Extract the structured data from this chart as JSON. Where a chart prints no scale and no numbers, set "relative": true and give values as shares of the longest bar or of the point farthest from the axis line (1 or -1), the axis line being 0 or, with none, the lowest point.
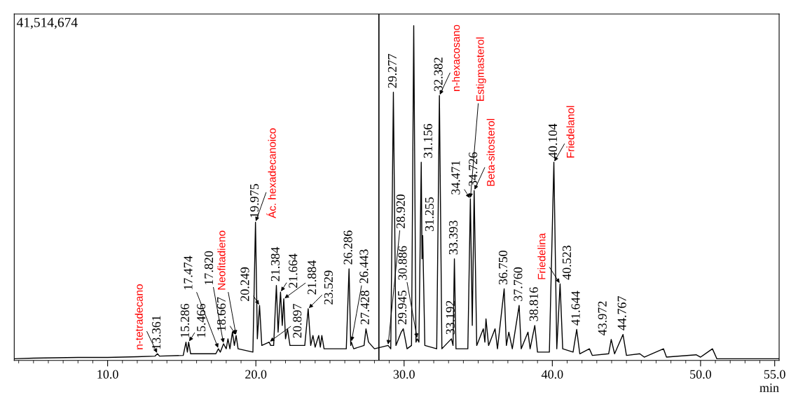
{
  "chart_data": {
    "type": "line",
    "relative": true,
    "xlabel": "min",
    "xlim": [
      3.7,
      55.3
    ],
    "xticks": [
      {
        "value": 10,
        "label": "10.0"
      },
      {
        "value": 20,
        "label": "20.0"
      },
      {
        "value": 30,
        "label": "30.0"
      },
      {
        "value": 40,
        "label": "40.0"
      },
      {
        "value": 50,
        "label": "50.0"
      },
      {
        "value": 55,
        "label": "55.0"
      }
    ],
    "grid": false,
    "legend": false,
    "marker": "none",
    "line_style": "solid",
    "ref_lines": [
      {
        "axis": "x",
        "value": 28.3,
        "color": "#000000"
      }
    ],
    "series": [
      {
        "color": "#000000",
        "x": [
          3.7,
          5,
          8,
          10,
          12,
          13.2,
          13.361,
          13.5,
          15.1,
          15.286,
          15.38,
          15.466,
          15.6,
          17.3,
          17.474,
          17.6,
          17.82,
          18.0,
          18.118,
          18.25,
          18.418,
          18.55,
          18.667,
          18.8,
          19.8,
          19.975,
          20.1,
          20.249,
          20.4,
          20.897,
          21.0,
          21.2,
          21.384,
          21.5,
          21.664,
          21.78,
          21.884,
          22.0,
          22.135,
          22.3,
          23.3,
          23.529,
          23.7,
          23.85,
          24.0,
          24.24,
          24.35,
          24.45,
          24.6,
          26.1,
          26.286,
          26.4,
          26.443,
          26.6,
          27.3,
          27.428,
          27.6,
          28.0,
          28.92,
          29.1,
          29.277,
          29.45,
          29.805,
          29.945,
          30.2,
          30.5,
          30.65,
          30.8,
          30.886,
          31.0,
          31.156,
          31.21,
          31.255,
          31.4,
          32.2,
          32.382,
          32.55,
          33.192,
          33.3,
          33.393,
          33.5,
          34.3,
          34.471,
          34.6,
          34.726,
          34.9,
          35.346,
          35.45,
          35.523,
          35.7,
          36.137,
          36.3,
          36.75,
          36.9,
          37.065,
          37.3,
          37.76,
          37.9,
          38.358,
          38.5,
          38.816,
          39.0,
          39.8,
          40.104,
          40.3,
          40.523,
          40.7,
          41.4,
          41.644,
          41.85,
          42.5,
          42.7,
          43.8,
          43.972,
          44.2,
          44.767,
          45.0,
          45.9,
          46.2,
          47.5,
          47.7,
          49.7,
          50.0,
          50.8,
          51.1,
          55.3
        ],
        "values": [
          0.0,
          0.002,
          0.004,
          0.004,
          0.006,
          0.008,
          0.015,
          0.008,
          0.01,
          0.05,
          0.02,
          0.05,
          0.015,
          0.015,
          0.03,
          0.02,
          0.045,
          0.03,
          0.06,
          0.03,
          0.08,
          0.04,
          0.07,
          0.03,
          0.02,
          0.41,
          0.06,
          0.16,
          0.04,
          0.05,
          0.04,
          0.04,
          0.22,
          0.08,
          0.2,
          0.1,
          0.18,
          0.06,
          0.09,
          0.04,
          0.04,
          0.15,
          0.04,
          0.07,
          0.035,
          0.07,
          0.035,
          0.07,
          0.03,
          0.03,
          0.27,
          0.04,
          0.05,
          0.03,
          0.04,
          0.09,
          0.05,
          0.03,
          0.04,
          0.03,
          0.8,
          0.04,
          0.08,
          0.09,
          0.03,
          0.04,
          1.0,
          0.05,
          0.06,
          0.05,
          0.59,
          0.3,
          0.37,
          0.04,
          0.03,
          0.79,
          0.03,
          0.06,
          0.04,
          0.3,
          0.03,
          0.03,
          0.48,
          0.1,
          0.505,
          0.04,
          0.09,
          0.05,
          0.12,
          0.04,
          0.09,
          0.03,
          0.21,
          0.04,
          0.08,
          0.03,
          0.16,
          0.03,
          0.08,
          0.03,
          0.1,
          0.02,
          0.02,
          0.59,
          0.03,
          0.225,
          0.03,
          0.02,
          0.088,
          0.015,
          0.03,
          0.01,
          0.015,
          0.058,
          0.015,
          0.073,
          0.01,
          0.015,
          0.005,
          0.03,
          0.005,
          0.012,
          0.005,
          0.03,
          0.0,
          0.0
        ]
      }
    ],
    "annotations": [
      "41,514,674",
      {
        "text": "13.361",
        "x": 13.361,
        "y": 0.015
      },
      {
        "text": "15.286",
        "x": 15.286,
        "y": 0.05
      },
      {
        "text": "15.466",
        "x": 15.466,
        "y": 0.05
      },
      {
        "text": "17.474",
        "x": 17.474,
        "y": 0.03
      },
      {
        "text": "17.820",
        "x": 17.82,
        "y": 0.045
      },
      {
        "text": "18.667",
        "x": 18.667,
        "y": 0.07
      },
      {
        "text": "19.975",
        "x": 19.975,
        "y": 0.41
      },
      {
        "text": "20.249",
        "x": 20.249,
        "y": 0.16
      },
      {
        "text": "20.897",
        "x": 20.897,
        "y": 0.05
      },
      {
        "text": "21.384",
        "x": 21.384,
        "y": 0.22
      },
      {
        "text": "21.664",
        "x": 21.664,
        "y": 0.2
      },
      {
        "text": "21.884",
        "x": 21.884,
        "y": 0.18
      },
      {
        "text": "23.529",
        "x": 23.529,
        "y": 0.15
      },
      {
        "text": "26.286",
        "x": 26.286,
        "y": 0.27
      },
      {
        "text": "26.443",
        "x": 26.443,
        "y": 0.05
      },
      {
        "text": "27.428",
        "x": 27.428,
        "y": 0.09
      },
      {
        "text": "28.920",
        "x": 28.92,
        "y": 0.04
      },
      {
        "text": "29.277",
        "x": 29.277,
        "y": 0.8
      },
      {
        "text": "29.945",
        "x": 29.945,
        "y": 0.09
      },
      {
        "text": "30.886",
        "x": 30.886,
        "y": 0.06
      },
      {
        "text": "31.156",
        "x": 31.156,
        "y": 0.59
      },
      {
        "text": "31.255",
        "x": 31.255,
        "y": 0.37
      },
      {
        "text": "32.382",
        "x": 32.382,
        "y": 0.79
      },
      {
        "text": "33.192",
        "x": 33.192,
        "y": 0.06
      },
      {
        "text": "33.393",
        "x": 33.393,
        "y": 0.3
      },
      {
        "text": "34.471",
        "x": 34.471,
        "y": 0.48
      },
      {
        "text": "34.726",
        "x": 34.726,
        "y": 0.505
      },
      {
        "text": "36.750",
        "x": 36.75,
        "y": 0.21
      },
      {
        "text": "37.760",
        "x": 37.76,
        "y": 0.16
      },
      {
        "text": "38.816",
        "x": 38.816,
        "y": 0.1
      },
      {
        "text": "40.104",
        "x": 40.104,
        "y": 0.59
      },
      {
        "text": "40.523",
        "x": 40.523,
        "y": 0.225
      },
      {
        "text": "41.644",
        "x": 41.644,
        "y": 0.088
      },
      {
        "text": "43.972",
        "x": 43.972,
        "y": 0.058
      },
      {
        "text": "44.767",
        "x": 44.767,
        "y": 0.073
      },
      {
        "text": "n-tetradecano",
        "x": 13.361,
        "y": 0.015
      },
      {
        "text": "Neofitadieno",
        "x": 18.667,
        "y": 0.07
      },
      {
        "text": "Ác. hexadecanoico",
        "x": 19.975,
        "y": 0.41
      },
      {
        "text": "n-hexacosano",
        "x": 32.382,
        "y": 0.79
      },
      {
        "text": "Estigmasterol",
        "x": 34.471,
        "y": 0.48
      },
      {
        "text": "Beta-sitosterol",
        "x": 34.726,
        "y": 0.505
      },
      {
        "text": "Friedelanol",
        "x": 40.104,
        "y": 0.59
      },
      {
        "text": "Friedelina",
        "x": 40.523,
        "y": 0.225
      }
    ]
  }
}
